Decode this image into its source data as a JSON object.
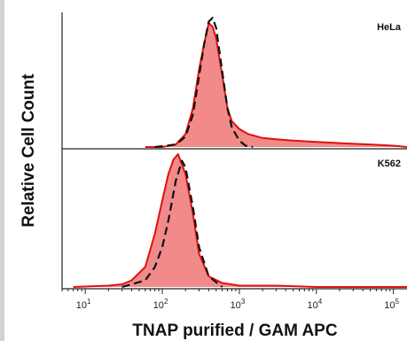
{
  "chart_data": {
    "type": "area",
    "title": "",
    "xlabel": "TNAP purified / GAM APC",
    "ylabel": "Relative Cell Count",
    "x_scale": "log",
    "xlim": [
      5,
      150000
    ],
    "x_ticks": [
      {
        "value": 10,
        "base": "10",
        "exp": "1"
      },
      {
        "value": 100,
        "base": "10",
        "exp": "2"
      },
      {
        "value": 1000,
        "base": "10",
        "exp": "3"
      },
      {
        "value": 10000,
        "base": "10",
        "exp": "4"
      },
      {
        "value": 100000,
        "base": "10",
        "exp": "5"
      }
    ],
    "colors": {
      "fill": "#f28a8a",
      "stroke": "#e01010",
      "control": "#111111",
      "frame": "#222222"
    },
    "panels": [
      {
        "label": "HeLa",
        "ylim": [
          0,
          100
        ],
        "series": [
          {
            "role": "stained",
            "style": "filled-red",
            "x": [
              60,
              100,
              150,
              200,
              250,
              300,
              350,
              400,
              450,
              500,
              600,
              700,
              800,
              1000,
              1300,
              2000,
              3000,
              5000,
              10000,
              20000,
              50000,
              100000,
              150000
            ],
            "y": [
              0,
              0,
              2,
              10,
              30,
              60,
              80,
              96,
              93,
              84,
              55,
              30,
              20,
              14,
              10,
              7,
              6,
              5,
              4,
              3,
              2,
              1,
              0
            ]
          },
          {
            "role": "control",
            "style": "dashed-black",
            "x": [
              80,
              150,
              200,
              250,
              300,
              350,
              400,
              450,
              500,
              600,
              700,
              800,
              1000,
              1200,
              1500
            ],
            "y": [
              0,
              2,
              8,
              25,
              55,
              80,
              97,
              100,
              92,
              58,
              30,
              15,
              5,
              1,
              0
            ]
          }
        ]
      },
      {
        "label": "K562",
        "ylim": [
          0,
          100
        ],
        "series": [
          {
            "role": "stained",
            "style": "filled-red",
            "x": [
              7,
              20,
              30,
              40,
              60,
              80,
              100,
              120,
              140,
              160,
              200,
              250,
              300,
              400,
              600,
              1000,
              3000,
              10000,
              150000
            ],
            "y": [
              0,
              1,
              2,
              5,
              15,
              40,
              65,
              85,
              96,
              100,
              85,
              55,
              25,
              8,
              3,
              1,
              1,
              0,
              0
            ]
          },
          {
            "role": "control",
            "style": "dashed-black",
            "x": [
              30,
              60,
              80,
              100,
              120,
              150,
              180,
              200,
              250,
              300,
              400,
              600
            ],
            "y": [
              0,
              5,
              15,
              30,
              50,
              80,
              95,
              90,
              60,
              30,
              8,
              0
            ]
          }
        ]
      }
    ]
  }
}
